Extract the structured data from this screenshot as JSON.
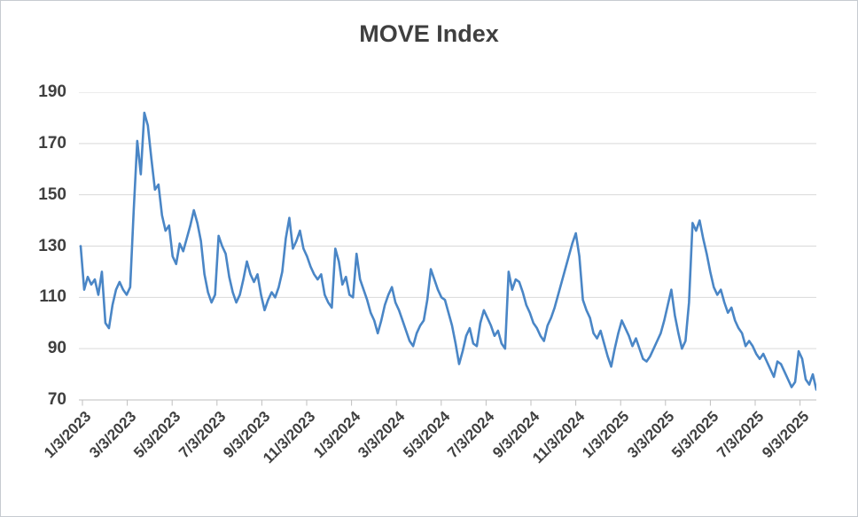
{
  "chart_data": {
    "type": "line",
    "title": "MOVE Index",
    "ylim": [
      70,
      190
    ],
    "y_ticks": [
      190,
      170,
      150,
      130,
      110,
      90,
      70
    ],
    "x_tick_labels": [
      "1/3/2023",
      "3/3/2023",
      "5/3/2023",
      "7/3/2023",
      "9/3/2023",
      "11/3/2023",
      "1/3/2024",
      "3/3/2024",
      "5/3/2024",
      "7/3/2024",
      "9/3/2024",
      "11/3/2024",
      "1/3/2025",
      "3/3/2025",
      "5/3/2025",
      "7/3/2025",
      "9/3/2025"
    ],
    "grid": "horizontal",
    "legend": "none",
    "colors": {
      "line": "#4a86c6",
      "gridline": "#d9d9d9",
      "axis": "#bfbfbf",
      "text": "#3f3f3f",
      "background": "#ffffff"
    },
    "series": [
      {
        "name": "MOVE Index",
        "values": [
          130,
          113,
          118,
          115,
          117,
          111,
          120,
          100,
          98,
          107,
          113,
          116,
          113,
          111,
          114,
          144,
          171,
          158,
          182,
          177,
          164,
          152,
          154,
          142,
          136,
          138,
          126,
          123,
          131,
          128,
          133,
          138,
          144,
          139,
          132,
          119,
          112,
          108,
          111,
          134,
          130,
          127,
          118,
          112,
          108,
          111,
          117,
          124,
          119,
          116,
          119,
          111,
          105,
          109,
          112,
          110,
          114,
          120,
          133,
          141,
          129,
          132,
          136,
          129,
          126,
          122,
          119,
          117,
          119,
          111,
          108,
          106,
          129,
          124,
          115,
          118,
          111,
          110,
          127,
          117,
          113,
          109,
          104,
          101,
          96,
          101,
          107,
          111,
          114,
          108,
          105,
          101,
          97,
          93,
          91,
          96,
          99,
          101,
          109,
          121,
          117,
          113,
          110,
          109,
          104,
          99,
          92,
          84,
          89,
          95,
          98,
          92,
          91,
          100,
          105,
          102,
          99,
          95,
          97,
          92,
          90,
          120,
          113,
          117,
          116,
          112,
          107,
          104,
          100,
          98,
          95,
          93,
          99,
          102,
          106,
          111,
          116,
          121,
          126,
          131,
          135,
          126,
          109,
          105,
          102,
          96,
          94,
          97,
          92,
          87,
          83,
          90,
          96,
          101,
          98,
          95,
          91,
          94,
          90,
          86,
          85,
          87,
          90,
          93,
          96,
          101,
          107,
          113,
          103,
          96,
          90,
          93,
          108,
          139,
          136,
          140,
          133,
          127,
          120,
          114,
          111,
          113,
          108,
          104,
          106,
          101,
          98,
          96,
          91,
          93,
          91,
          88,
          86,
          88,
          85,
          82,
          79,
          85,
          84,
          81,
          78,
          75,
          77,
          89,
          86,
          78,
          76,
          80,
          74
        ]
      }
    ]
  }
}
